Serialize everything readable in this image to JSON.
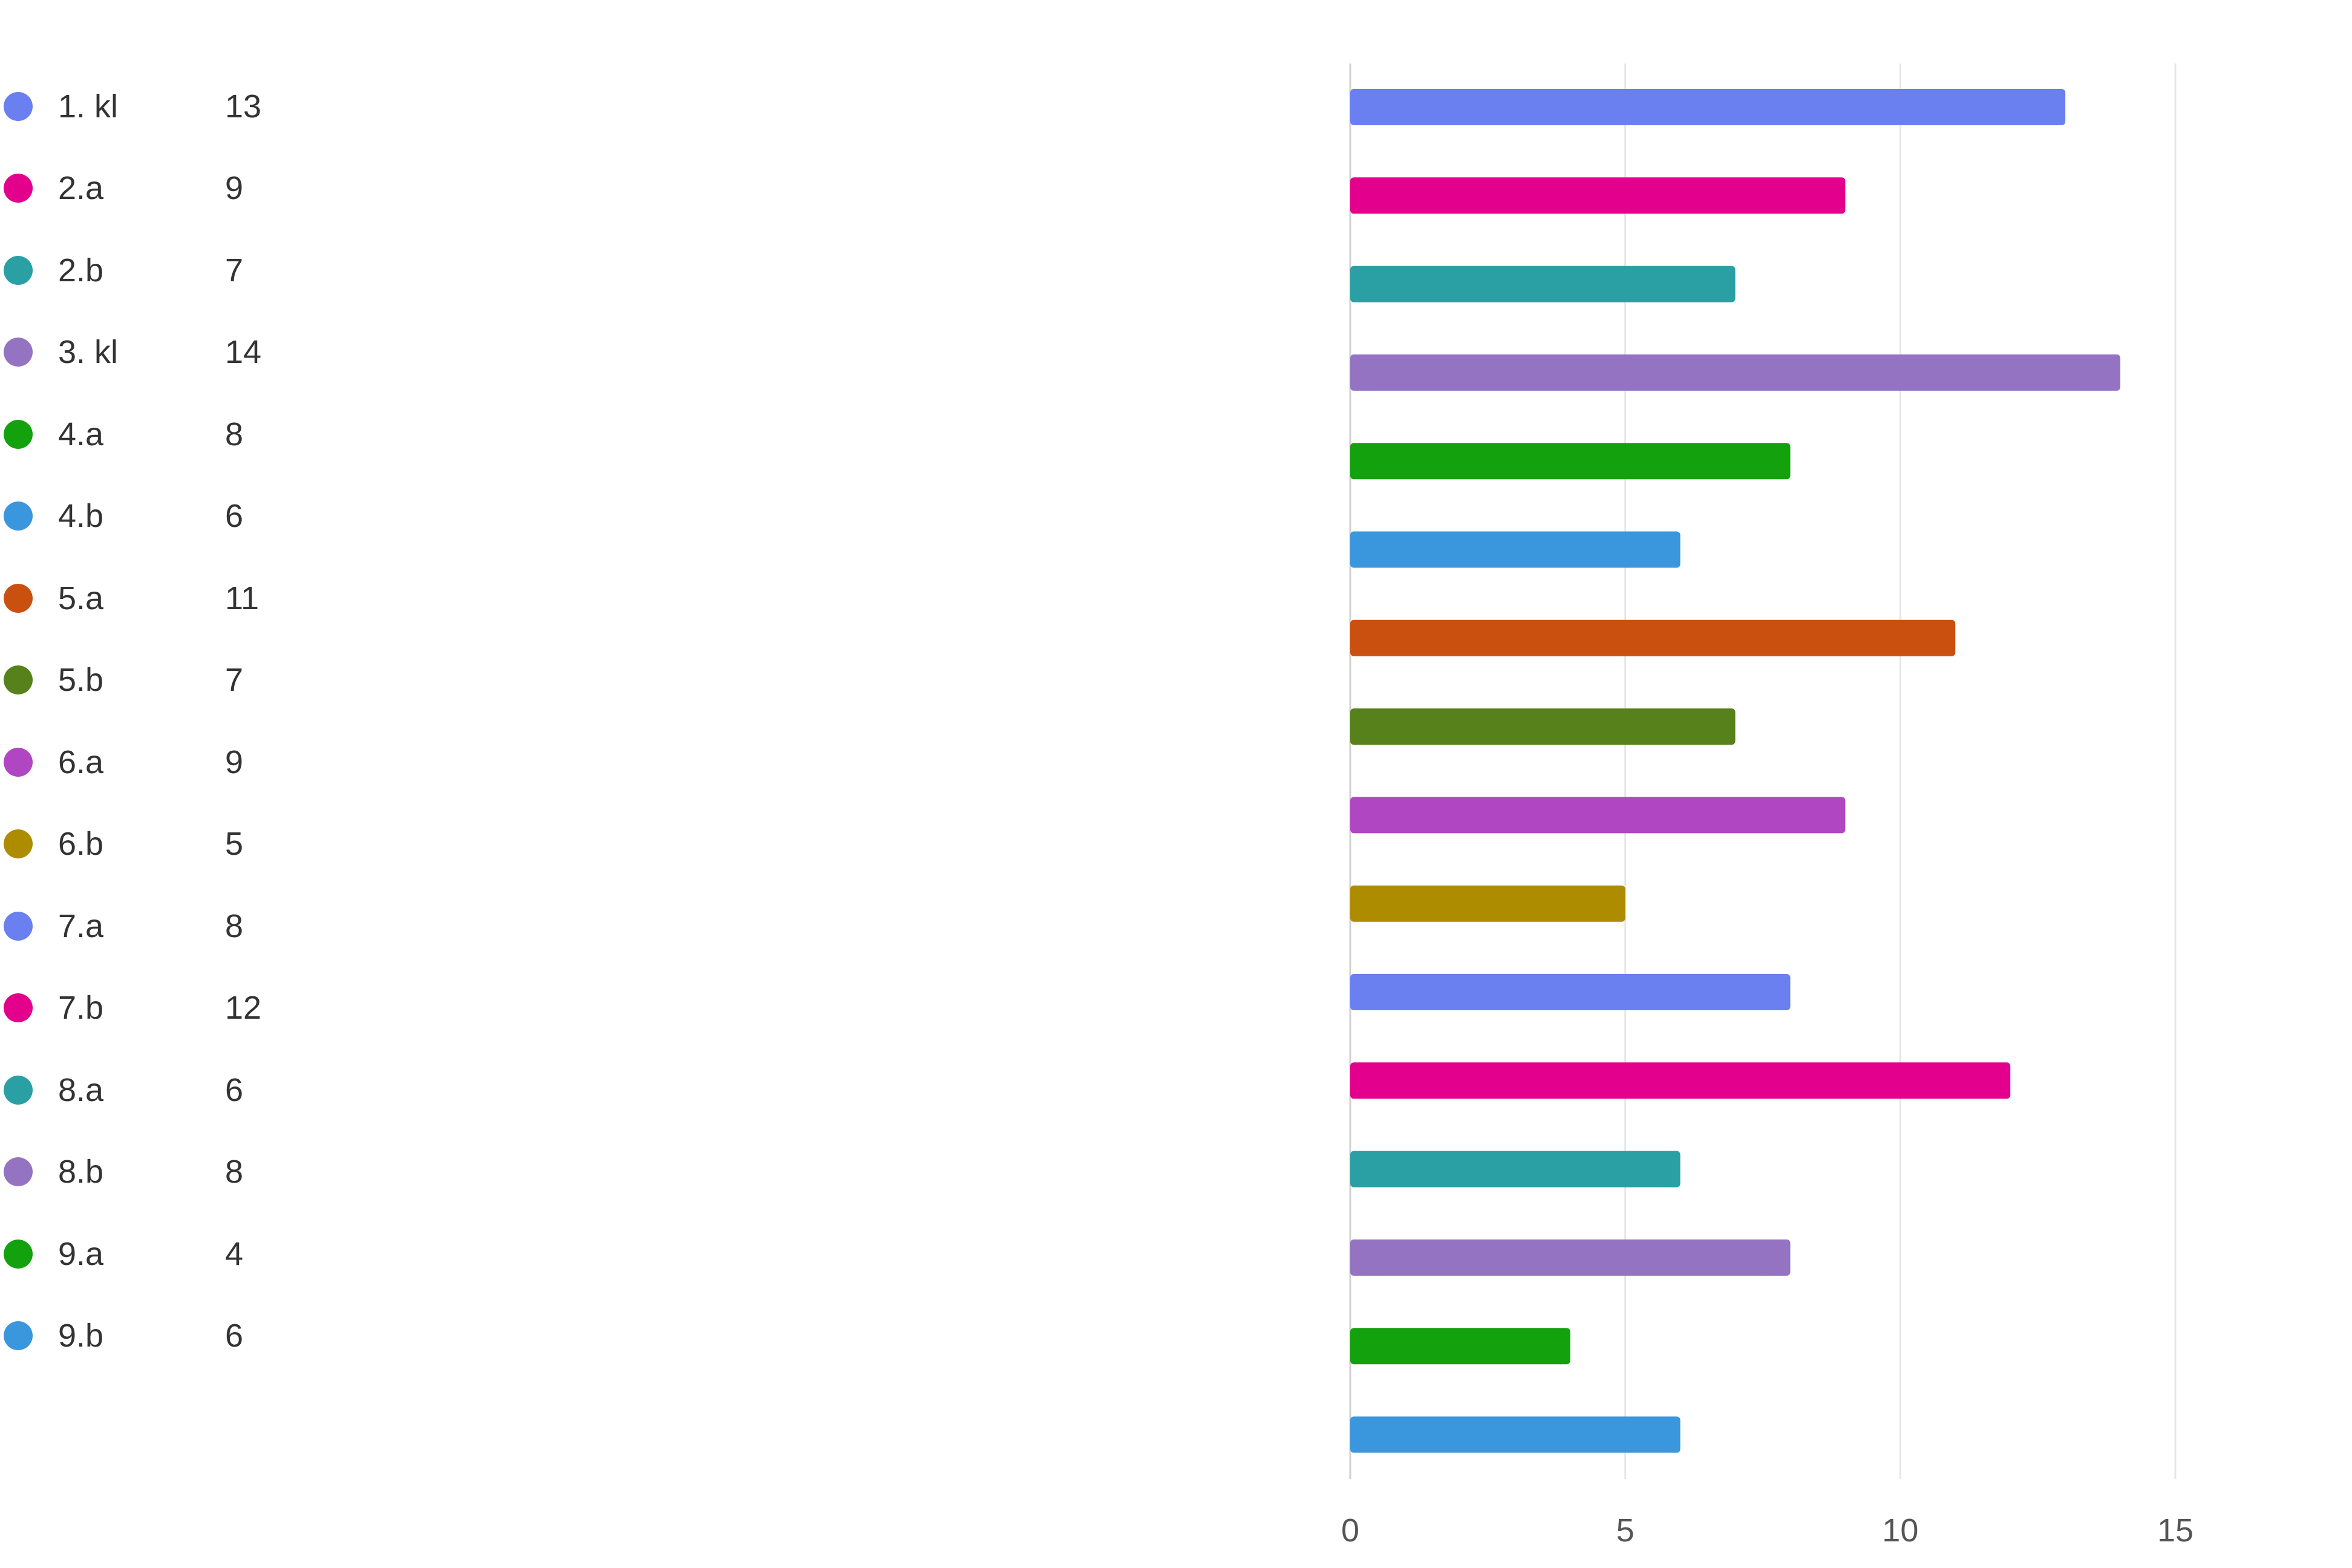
{
  "chart_data": {
    "type": "bar",
    "orientation": "horizontal",
    "categories": [
      "1. kl",
      "2.a",
      "2.b",
      "3. kl",
      "4.a",
      "4.b",
      "5.a",
      "5.b",
      "6.a",
      "6.b",
      "7.a",
      "7.b",
      "8.a",
      "8.b",
      "9.a",
      "9.b"
    ],
    "values": [
      13,
      9,
      7,
      14,
      8,
      6,
      11,
      7,
      9,
      5,
      8,
      12,
      6,
      8,
      4,
      6
    ],
    "colors": [
      "#6a7ff0",
      "#e3008c",
      "#2aa0a4",
      "#9474c2",
      "#13a10e",
      "#3a96dd",
      "#ca5010",
      "#57811b",
      "#b146c2",
      "#ae8c00",
      "#6a7ff0",
      "#e3008c",
      "#2aa0a4",
      "#9474c2",
      "#13a10e",
      "#3a96dd"
    ],
    "bar_values": [
      13,
      9,
      7,
      14,
      8,
      6,
      11,
      7,
      9,
      5,
      8,
      12,
      6,
      8,
      4,
      6
    ],
    "bar_colors": [
      "#6a7ff0",
      "#e3008c",
      "#2aa0a4",
      "#9474c2",
      "#13a10e",
      "#3a96dd",
      "#ca5010",
      "#57811b",
      "#b146c2",
      "#ae8c00",
      "#6a7ff0",
      "#e3008c",
      "#2aa0a4",
      "#9474c2",
      "#13a10e",
      "#3a96dd"
    ],
    "xlim": [
      0,
      15
    ],
    "xticks": [
      "0",
      "5",
      "10",
      "15"
    ],
    "grid": true,
    "legend_position": "left",
    "title": "",
    "xlabel": "",
    "ylabel": ""
  },
  "style": {
    "grid_color": "#e6e6e6",
    "axis_color": "#d0d0d0",
    "text_color": "#333333"
  }
}
